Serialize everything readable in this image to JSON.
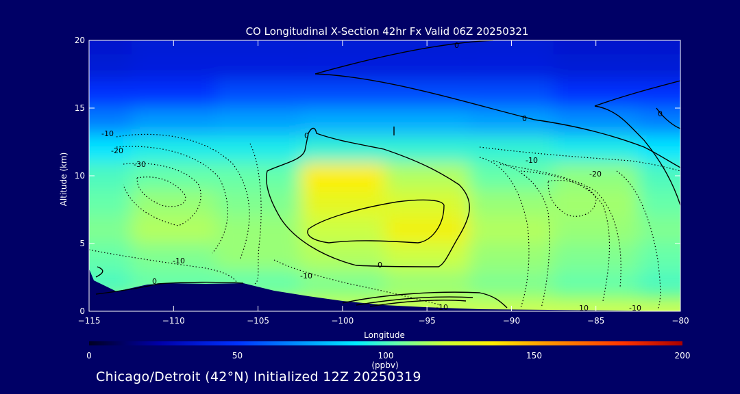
{
  "chart_data": {
    "type": "heatmap",
    "title": "CO Longitudinal X-Section 42hr  Fx Valid 06Z 20250321",
    "xlabel": "Longitude",
    "ylabel": "Altitude (km)",
    "xlim": [
      -115,
      -80
    ],
    "ylim": [
      0,
      20
    ],
    "x_ticks": [
      "-115",
      "-110",
      "-105",
      "-100",
      "-95",
      "-90",
      "-85",
      "-80"
    ],
    "y_ticks": [
      "0",
      "5",
      "10",
      "15",
      "20"
    ],
    "colorbar": {
      "label": "(ppbv)",
      "range": [
        0,
        200
      ],
      "ticks": [
        "0",
        "50",
        "100",
        "150",
        "200"
      ],
      "colors": [
        "#000033",
        "#0000aa",
        "#0033ff",
        "#0099ff",
        "#00e5ff",
        "#66ffaa",
        "#ccff44",
        "#ffee00",
        "#ff9900",
        "#ff3300",
        "#cc0000"
      ]
    },
    "contour_labels": [
      "0",
      "0",
      "0",
      "0",
      "0",
      "0",
      "-10",
      "-10",
      "-10",
      "-10",
      "-10",
      "-20",
      "-20",
      "-30",
      "-10",
      "10",
      "10"
    ],
    "co_field": {
      "longitude": [
        -115,
        -110,
        -105,
        -100,
        -95,
        -90,
        -85,
        -80
      ],
      "altitude_km": [
        2,
        4,
        6,
        8,
        10,
        12,
        14,
        16,
        18,
        20
      ],
      "values_ppbv": [
        [
          95,
          100,
          100,
          105,
          110,
          105,
          100,
          95
        ],
        [
          100,
          105,
          110,
          115,
          120,
          110,
          105,
          100
        ],
        [
          105,
          115,
          110,
          120,
          135,
          115,
          110,
          105
        ],
        [
          100,
          110,
          105,
          130,
          125,
          110,
          112,
          100
        ],
        [
          95,
          100,
          100,
          140,
          115,
          100,
          108,
          95
        ],
        [
          80,
          85,
          85,
          90,
          90,
          90,
          85,
          80
        ],
        [
          55,
          60,
          62,
          65,
          65,
          62,
          58,
          55
        ],
        [
          40,
          40,
          45,
          45,
          45,
          45,
          40,
          40
        ],
        [
          30,
          32,
          32,
          32,
          32,
          32,
          30,
          30
        ],
        [
          28,
          30,
          30,
          30,
          30,
          30,
          28,
          28
        ]
      ]
    }
  },
  "footer": "Chicago/Detroit (42°N) Initialized 12Z 20250319"
}
